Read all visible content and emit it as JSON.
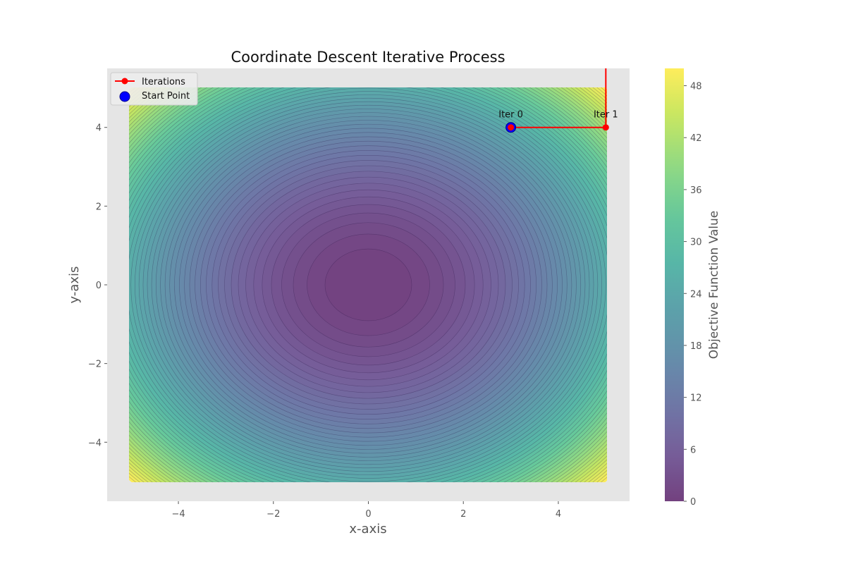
{
  "chart_data": {
    "type": "contour",
    "title": "Coordinate Descent Iterative Process",
    "xlabel": "x-axis",
    "ylabel": "y-axis",
    "xlim": [
      -5.5,
      5.5
    ],
    "ylim": [
      -5.5,
      5.5
    ],
    "domain": {
      "x": [
        -5,
        5
      ],
      "y": [
        -5,
        5
      ]
    },
    "objective": "x^2 + y^2",
    "x_ticks": [
      -4,
      -2,
      0,
      2,
      4
    ],
    "y_ticks": [
      -4,
      -2,
      0,
      2,
      4
    ],
    "x_tick_labels": [
      "−4",
      "−2",
      "0",
      "2",
      "4"
    ],
    "y_tick_labels": [
      "−4",
      "−2",
      "0",
      "2",
      "4"
    ],
    "grid": false,
    "colormap": "viridis",
    "alpha": 0.75,
    "legend": {
      "placement": "top-left",
      "entries": [
        "Iterations",
        "Start Point"
      ]
    },
    "iterations": {
      "name": "Iterations",
      "color": "#ff0000",
      "points": [
        {
          "label": "Iter 0",
          "x": 3,
          "y": 4
        },
        {
          "label": "Iter 1",
          "x": 5,
          "y": 4
        },
        {
          "label": "",
          "x": 5,
          "y": 10
        }
      ]
    },
    "start_point": {
      "name": "Start Point",
      "x": 3,
      "y": 4,
      "color": "#0000ff"
    },
    "colorbar": {
      "label": "Objective Function Value",
      "range": [
        0,
        50
      ],
      "ticks": [
        0,
        6,
        12,
        18,
        24,
        30,
        36,
        42,
        48
      ],
      "tick_labels": [
        "0",
        "6",
        "12",
        "18",
        "24",
        "30",
        "36",
        "42",
        "48"
      ]
    }
  }
}
